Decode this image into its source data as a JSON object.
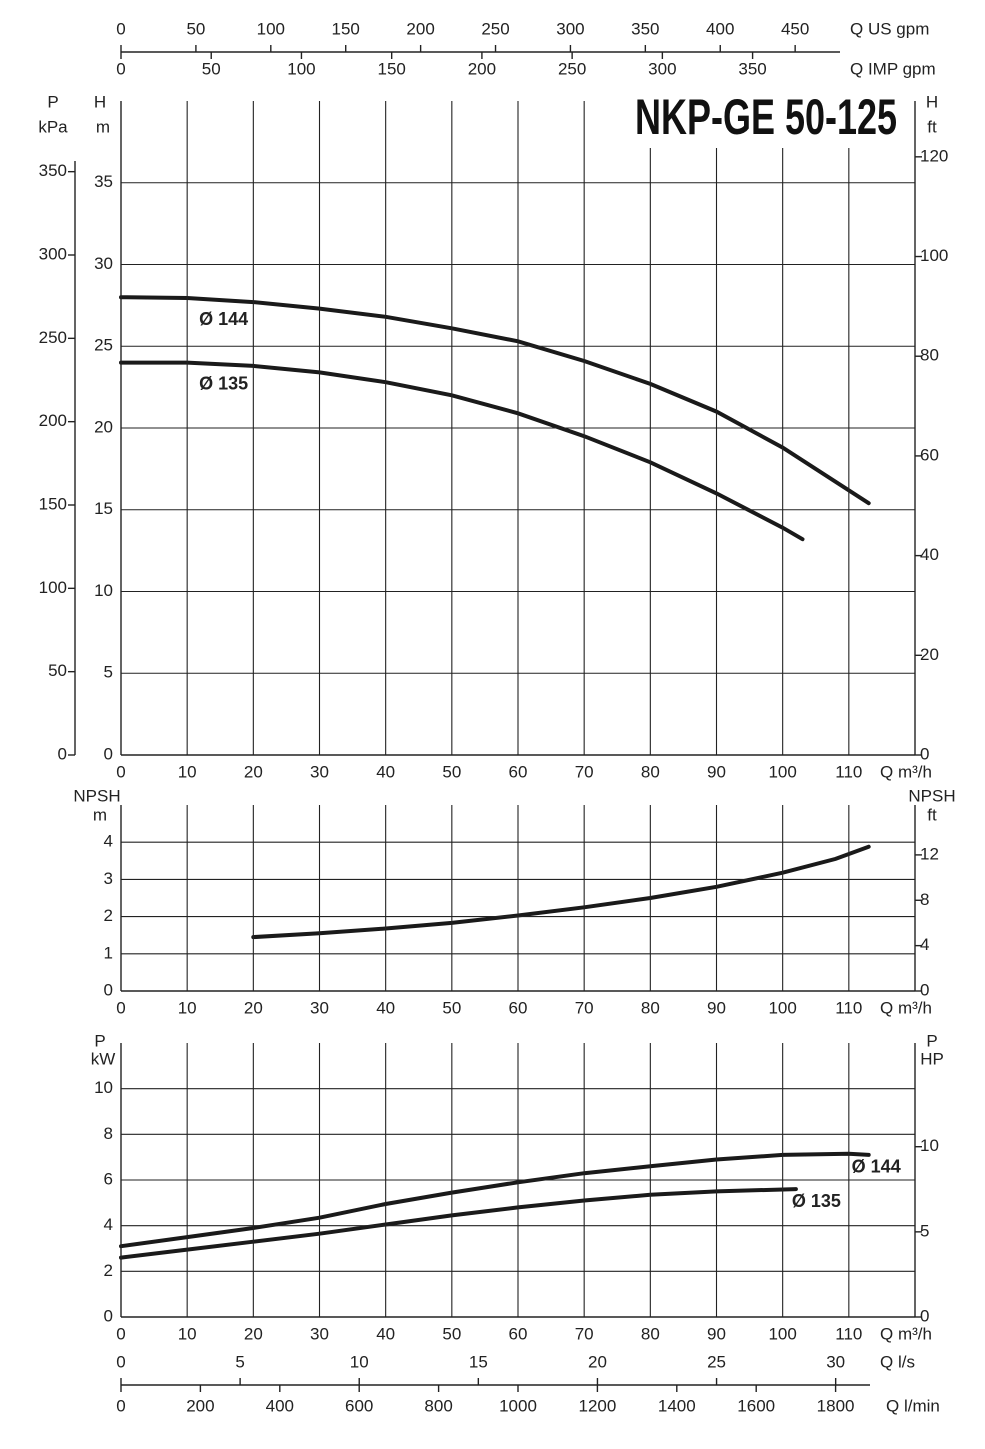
{
  "chart_data": [
    {
      "type": "line",
      "title": "NKP-GE 50-125",
      "x_label": "Q m³/h",
      "xlim": [
        0,
        120
      ],
      "xticks": [
        0,
        10,
        20,
        30,
        40,
        50,
        60,
        70,
        80,
        90,
        100,
        110
      ],
      "y_label": "H",
      "y_unit": "m",
      "ylim": [
        0,
        40
      ],
      "yticks": [
        0,
        5,
        10,
        15,
        20,
        25,
        30,
        35
      ],
      "y2_label": "H",
      "y2_unit": "ft",
      "y2lim": [
        0,
        131.2
      ],
      "y2ticks": [
        0,
        20,
        40,
        60,
        80,
        100,
        120
      ],
      "p_axis": {
        "label": "P",
        "unit": "kPa",
        "lim": [
          0,
          392.4
        ],
        "ticks": [
          0,
          50,
          100,
          150,
          200,
          250,
          300,
          350
        ]
      },
      "top_axes": [
        {
          "label": "Q US gpm",
          "lim": [
            0,
            530
          ],
          "ticks": [
            0,
            50,
            100,
            150,
            200,
            250,
            300,
            350,
            400,
            450
          ]
        },
        {
          "label": "Q IMP gpm",
          "lim": [
            0,
            440
          ],
          "ticks": [
            0,
            50,
            100,
            150,
            200,
            250,
            300,
            350
          ]
        }
      ],
      "grid": true,
      "series": [
        {
          "name": "Ø 144",
          "color": "#1a1a1a",
          "x": [
            0,
            10,
            20,
            30,
            40,
            50,
            60,
            70,
            80,
            90,
            100,
            113
          ],
          "values": [
            28,
            27.95,
            27.7,
            27.3,
            26.8,
            26.1,
            25.3,
            24.1,
            22.7,
            21,
            18.8,
            15.4
          ]
        },
        {
          "name": "Ø 135",
          "color": "#1a1a1a",
          "x": [
            0,
            10,
            20,
            30,
            40,
            50,
            60,
            70,
            80,
            90,
            100,
            103
          ],
          "values": [
            24,
            24,
            23.8,
            23.4,
            22.8,
            22,
            20.9,
            19.5,
            17.9,
            16,
            13.9,
            13.2
          ]
        }
      ]
    },
    {
      "type": "line",
      "x_label": "Q m³/h",
      "xlim": [
        0,
        120
      ],
      "xticks": [
        0,
        10,
        20,
        30,
        40,
        50,
        60,
        70,
        80,
        90,
        100,
        110
      ],
      "y_label": "NPSH",
      "y_unit": "m",
      "ylim": [
        0,
        5
      ],
      "yticks": [
        0,
        1,
        2,
        3,
        4
      ],
      "y2_label": "NPSH",
      "y2_unit": "ft",
      "y2lim": [
        0,
        16.4
      ],
      "y2ticks": [
        0,
        4,
        8,
        12
      ],
      "grid": true,
      "color": "#1a1a1a",
      "x": [
        20,
        30,
        40,
        50,
        60,
        70,
        80,
        90,
        100,
        108,
        113
      ],
      "values": [
        1.45,
        1.55,
        1.68,
        1.83,
        2.03,
        2.25,
        2.5,
        2.8,
        3.18,
        3.55,
        3.88
      ]
    },
    {
      "type": "line",
      "x_label": "Q m³/h",
      "xlim": [
        0,
        120
      ],
      "xticks": [
        0,
        10,
        20,
        30,
        40,
        50,
        60,
        70,
        80,
        90,
        100,
        110
      ],
      "y_label": "P",
      "y_unit": "kW",
      "ylim": [
        0,
        12
      ],
      "yticks": [
        0,
        2,
        4,
        6,
        8,
        10
      ],
      "y2_label": "P",
      "y2_unit": "HP",
      "y2lim": [
        0,
        16.09
      ],
      "y2ticks": [
        0,
        5,
        10
      ],
      "bottom_axes": [
        {
          "label": "Q l/s",
          "lim": [
            0,
            33.33
          ],
          "ticks": [
            0,
            5,
            10,
            15,
            20,
            25,
            30
          ]
        },
        {
          "label": "Q l/min",
          "lim": [
            0,
            2000
          ],
          "ticks": [
            0,
            200,
            400,
            600,
            800,
            1000,
            1200,
            1400,
            1600,
            1800
          ]
        }
      ],
      "grid": true,
      "series": [
        {
          "name": "Ø 144",
          "color": "#1a1a1a",
          "x": [
            0,
            10,
            20,
            30,
            40,
            50,
            60,
            70,
            80,
            90,
            100,
            110,
            113
          ],
          "values": [
            3.1,
            3.5,
            3.9,
            4.35,
            4.95,
            5.45,
            5.9,
            6.3,
            6.6,
            6.9,
            7.1,
            7.15,
            7.1
          ]
        },
        {
          "name": "Ø 135",
          "color": "#1a1a1a",
          "x": [
            0,
            10,
            20,
            30,
            40,
            50,
            60,
            70,
            80,
            90,
            102
          ],
          "values": [
            2.6,
            2.95,
            3.3,
            3.65,
            4.05,
            4.45,
            4.8,
            5.1,
            5.35,
            5.5,
            5.6
          ]
        }
      ]
    }
  ]
}
